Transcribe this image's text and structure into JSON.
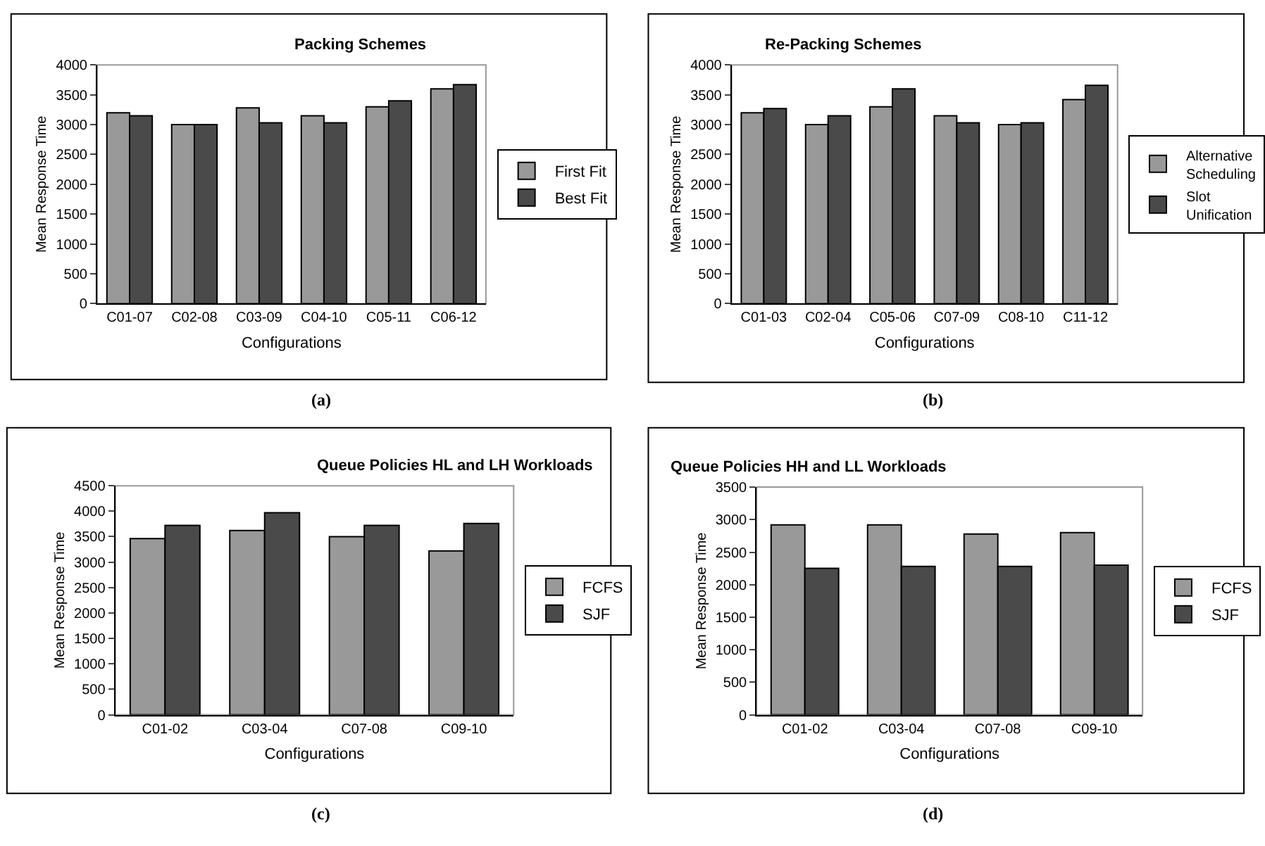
{
  "chart_data": [
    {
      "type": "bar",
      "title": "Packing Schemes",
      "xlabel": "Configurations",
      "ylabel": "Mean Response Time",
      "categories": [
        "C01-07",
        "C02-08",
        "C03-09",
        "C04-10",
        "C05-11",
        "C06-12"
      ],
      "series": [
        {
          "name": "First Fit",
          "color": "#999999",
          "values": [
            3200,
            3000,
            3280,
            3150,
            3300,
            3600
          ]
        },
        {
          "name": "Best Fit",
          "color": "#4a4a4a",
          "values": [
            3150,
            3000,
            3030,
            3030,
            3400,
            3670
          ]
        }
      ],
      "ylim": [
        0,
        4000
      ],
      "yticks": [
        0,
        500,
        1000,
        1500,
        2000,
        2500,
        3000,
        3500,
        4000
      ],
      "grid": false,
      "legend": "right",
      "annotations": [
        "(a)"
      ]
    },
    {
      "type": "bar",
      "title": "Re-Packing Schemes",
      "xlabel": "Configurations",
      "ylabel": "Mean Response Time",
      "categories": [
        "C01-03",
        "C02-04",
        "C05-06",
        "C07-09",
        "C08-10",
        "C11-12"
      ],
      "series": [
        {
          "name": "Alternative Scheduling",
          "color": "#999999",
          "values": [
            3200,
            3000,
            3300,
            3150,
            3000,
            3420
          ]
        },
        {
          "name": "Slot Unification",
          "color": "#4a4a4a",
          "values": [
            3270,
            3150,
            3600,
            3030,
            3030,
            3660
          ]
        }
      ],
      "ylim": [
        0,
        4000
      ],
      "yticks": [
        0,
        500,
        1000,
        1500,
        2000,
        2500,
        3000,
        3500,
        4000
      ],
      "grid": false,
      "legend": "right",
      "annotations": [
        "(b)"
      ]
    },
    {
      "type": "bar",
      "title": "Queue Policies HL and LH Workloads",
      "xlabel": "Configurations",
      "ylabel": "Mean Response Time",
      "categories": [
        "C01-02",
        "C03-04",
        "C07-08",
        "C09-10"
      ],
      "series": [
        {
          "name": "FCFS",
          "color": "#999999",
          "values": [
            3460,
            3620,
            3500,
            3220
          ]
        },
        {
          "name": "SJF",
          "color": "#4a4a4a",
          "values": [
            3720,
            3970,
            3720,
            3760
          ]
        }
      ],
      "ylim": [
        0,
        4500
      ],
      "yticks": [
        0,
        500,
        1000,
        1500,
        2000,
        2500,
        3000,
        3500,
        4000,
        4500
      ],
      "grid": false,
      "legend": "right",
      "annotations": [
        "(c)"
      ]
    },
    {
      "type": "bar",
      "title": "Queue Policies HH and LL Workloads",
      "xlabel": "Configurations",
      "ylabel": "Mean Response Time",
      "categories": [
        "C01-02",
        "C03-04",
        "C07-08",
        "C09-10"
      ],
      "series": [
        {
          "name": "FCFS",
          "color": "#999999",
          "values": [
            2920,
            2920,
            2780,
            2800
          ]
        },
        {
          "name": "SJF",
          "color": "#4a4a4a",
          "values": [
            2250,
            2280,
            2280,
            2300
          ]
        }
      ],
      "ylim": [
        0,
        3500
      ],
      "yticks": [
        0,
        500,
        1000,
        1500,
        2000,
        2500,
        3000,
        3500
      ],
      "grid": false,
      "legend": "right",
      "annotations": [
        "(d)"
      ]
    }
  ]
}
